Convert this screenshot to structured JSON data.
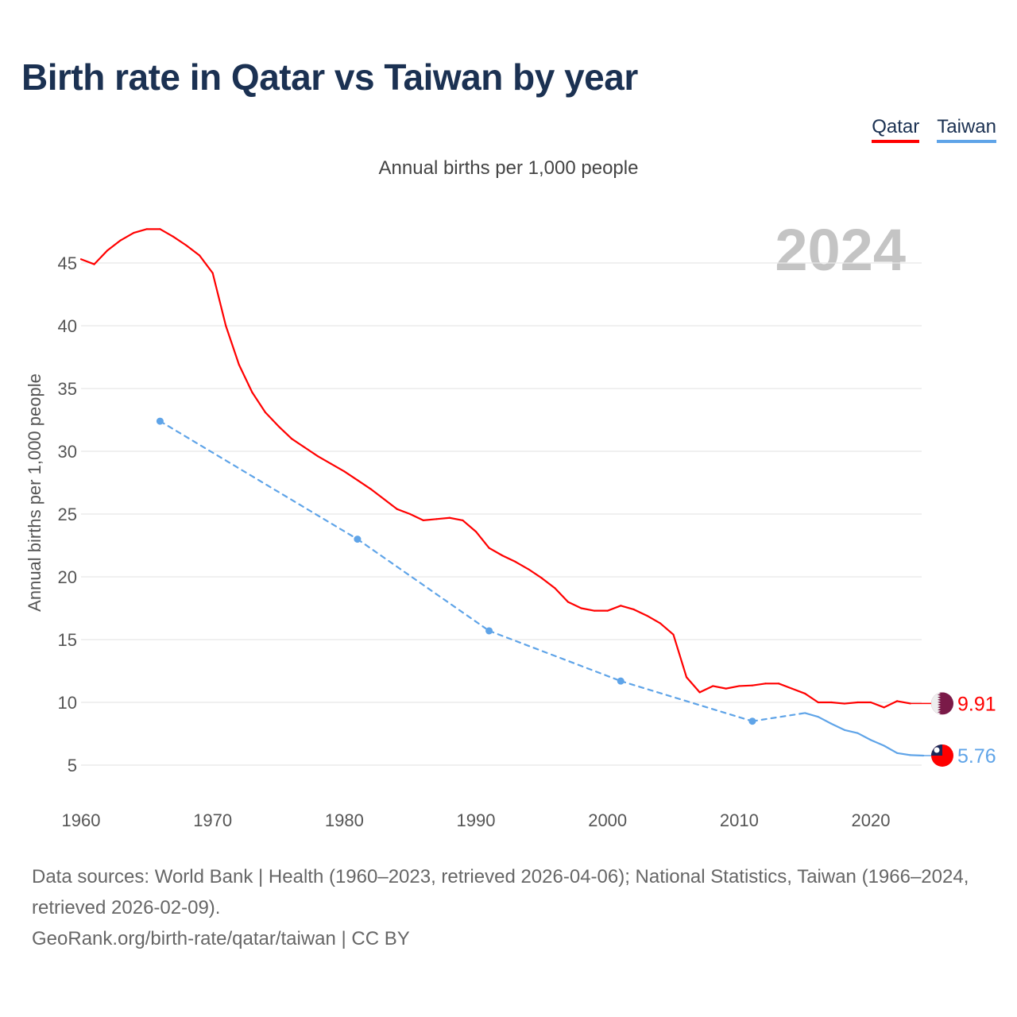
{
  "title": "Birth rate in Qatar vs Taiwan by year",
  "legend": [
    {
      "label": "Qatar",
      "color": "#ff0000"
    },
    {
      "label": "Taiwan",
      "color": "#5fa4e8"
    }
  ],
  "subtitle": "Annual births per 1,000 people",
  "footer": {
    "line1": "Data sources: World Bank | Health (1960–2023, retrieved 2026-04-06); National Statistics, Taiwan (1966–2024, retrieved 2026-02-09).",
    "line2": "GeoRank.org/birth-rate/qatar/taiwan | CC BY"
  },
  "chart_data": {
    "type": "line",
    "title": "Birth rate in Qatar vs Taiwan by year",
    "ylabel": "Annual births per 1,000 people",
    "xlabel": "",
    "year_label": "2024",
    "xlim": [
      1960,
      2025
    ],
    "ylim": [
      2,
      48
    ],
    "xticks": [
      "1960",
      "1970",
      "1980",
      "1990",
      "2000",
      "2010",
      "2020"
    ],
    "yticks": [
      "5",
      "10",
      "15",
      "20",
      "25",
      "30",
      "35",
      "40",
      "45"
    ],
    "grid": true,
    "legend_position": "top-right",
    "series": [
      {
        "name": "Qatar",
        "color": "#ff0000",
        "end_label": "9.91",
        "flag": "qatar-flag",
        "x": [
          1960,
          1961,
          1962,
          1963,
          1964,
          1965,
          1966,
          1967,
          1968,
          1969,
          1970,
          1971,
          1972,
          1973,
          1974,
          1975,
          1976,
          1977,
          1978,
          1979,
          1980,
          1981,
          1982,
          1983,
          1984,
          1985,
          1986,
          1987,
          1988,
          1989,
          1990,
          1991,
          1992,
          1993,
          1994,
          1995,
          1996,
          1997,
          1998,
          1999,
          2000,
          2001,
          2002,
          2003,
          2004,
          2005,
          2006,
          2007,
          2008,
          2009,
          2010,
          2011,
          2012,
          2013,
          2014,
          2015,
          2016,
          2017,
          2018,
          2019,
          2020,
          2021,
          2022,
          2023
        ],
        "y": [
          45.3,
          44.9,
          46.0,
          46.8,
          47.4,
          47.7,
          47.7,
          47.1,
          46.4,
          45.6,
          44.2,
          40.0,
          36.9,
          34.7,
          33.1,
          32.0,
          31.0,
          30.3,
          29.6,
          29.0,
          28.4,
          27.7,
          27.0,
          26.2,
          25.4,
          25.0,
          24.5,
          24.6,
          24.7,
          24.5,
          23.6,
          22.3,
          21.7,
          21.2,
          20.6,
          19.9,
          19.1,
          18.0,
          17.5,
          17.3,
          17.3,
          17.7,
          17.4,
          16.9,
          16.3,
          15.4,
          12.0,
          10.8,
          11.3,
          11.1,
          11.3,
          11.35,
          11.5,
          11.5,
          11.1,
          10.7,
          10.0,
          10.0,
          9.9,
          10.0,
          10.0,
          9.6,
          10.1,
          9.91
        ]
      },
      {
        "name": "Taiwan",
        "color": "#5fa4e8",
        "end_label": "5.76",
        "flag": "taiwan-flag",
        "x": [
          1966,
          1981,
          1991,
          2001,
          2011,
          2015,
          2016,
          2017,
          2018,
          2019,
          2020,
          2021,
          2022,
          2023,
          2024
        ],
        "y": [
          32.4,
          23.0,
          15.7,
          11.7,
          8.5,
          9.15,
          8.85,
          8.3,
          7.8,
          7.55,
          7.0,
          6.55,
          5.96,
          5.8,
          5.76
        ]
      }
    ]
  }
}
